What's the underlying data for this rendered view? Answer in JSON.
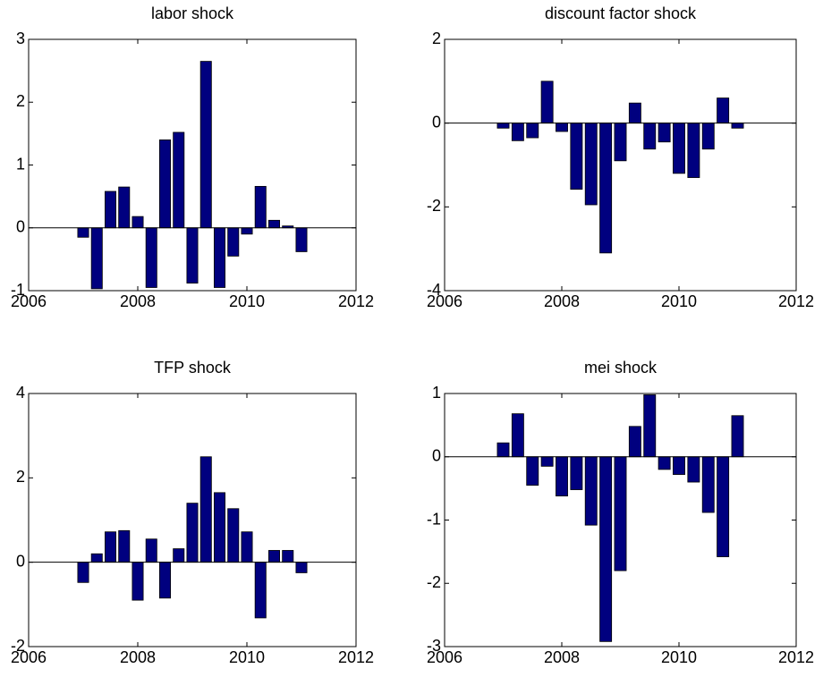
{
  "chart_data": [
    {
      "type": "bar",
      "title": "labor shock",
      "x": [
        2007,
        2007.25,
        2007.5,
        2007.75,
        2008,
        2008.25,
        2008.5,
        2008.75,
        2009,
        2009.25,
        2009.5,
        2009.75,
        2010,
        2010.25,
        2010.5,
        2010.75,
        2011
      ],
      "values": [
        -0.15,
        -0.97,
        0.58,
        0.65,
        0.18,
        -0.95,
        1.4,
        1.52,
        -0.88,
        2.65,
        -0.95,
        -0.45,
        -0.1,
        0.66,
        0.12,
        0.03,
        -0.38
      ],
      "color": "#00007f",
      "xlim": [
        2006,
        2012
      ],
      "ylim": [
        -1,
        3
      ],
      "xticks": [
        2006,
        2008,
        2010,
        2012
      ],
      "yticks": [
        -1,
        0,
        1,
        2,
        3
      ]
    },
    {
      "type": "bar",
      "title": "discount factor shock",
      "x": [
        2007,
        2007.25,
        2007.5,
        2007.75,
        2008,
        2008.25,
        2008.5,
        2008.75,
        2009,
        2009.25,
        2009.5,
        2009.75,
        2010,
        2010.25,
        2010.5,
        2010.75,
        2011
      ],
      "values": [
        -0.12,
        -0.42,
        -0.35,
        1.0,
        -0.2,
        -1.58,
        -1.95,
        -3.1,
        -0.9,
        0.48,
        -0.62,
        -0.45,
        -1.2,
        -1.3,
        -0.62,
        0.6,
        -0.12
      ],
      "color": "#00007f",
      "xlim": [
        2006,
        2012
      ],
      "ylim": [
        -4,
        2
      ],
      "xticks": [
        2006,
        2008,
        2010,
        2012
      ],
      "yticks": [
        -4,
        -2,
        0,
        2
      ]
    },
    {
      "type": "bar",
      "title": "TFP shock",
      "x": [
        2007,
        2007.25,
        2007.5,
        2007.75,
        2008,
        2008.25,
        2008.5,
        2008.75,
        2009,
        2009.25,
        2009.5,
        2009.75,
        2010,
        2010.25,
        2010.5,
        2010.75,
        2011
      ],
      "values": [
        -0.48,
        0.2,
        0.72,
        0.75,
        -0.9,
        0.55,
        -0.85,
        0.32,
        1.4,
        2.5,
        1.65,
        1.27,
        0.72,
        -1.32,
        0.28,
        0.28,
        -0.25
      ],
      "color": "#00007f",
      "xlim": [
        2006,
        2012
      ],
      "ylim": [
        -2,
        4
      ],
      "xticks": [
        2006,
        2008,
        2010,
        2012
      ],
      "yticks": [
        -2,
        0,
        2,
        4
      ]
    },
    {
      "type": "bar",
      "title": "mei shock",
      "x": [
        2007,
        2007.25,
        2007.5,
        2007.75,
        2008,
        2008.25,
        2008.5,
        2008.75,
        2009,
        2009.25,
        2009.5,
        2009.75,
        2010,
        2010.25,
        2010.5,
        2010.75,
        2011
      ],
      "values": [
        0.22,
        0.68,
        -0.45,
        -0.15,
        -0.62,
        -0.52,
        -1.08,
        -2.92,
        -1.8,
        0.48,
        0.98,
        -0.2,
        -0.28,
        -0.4,
        -0.88,
        -1.58,
        0.65
      ],
      "color": "#00007f",
      "xlim": [
        2006,
        2012
      ],
      "ylim": [
        -3,
        1
      ],
      "xticks": [
        2006,
        2008,
        2010,
        2012
      ],
      "yticks": [
        -3,
        -2,
        -1,
        0,
        1
      ]
    }
  ]
}
